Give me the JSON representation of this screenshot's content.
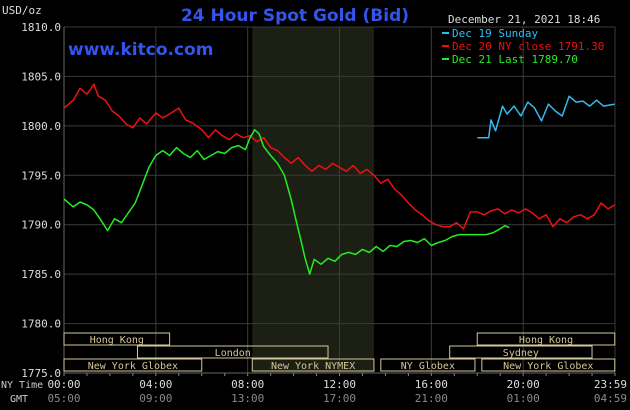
{
  "chart_data": {
    "type": "line",
    "title": "24 Hour Spot Gold (Bid)",
    "ylabel": "USD/oz",
    "watermark": "www.kitco.com",
    "timestamp": "December 21, 2021 18:46",
    "ylim": [
      1775.0,
      1810.0
    ],
    "y_ticks": [
      "1810.0",
      "1805.0",
      "1800.0",
      "1795.0",
      "1790.0",
      "1785.0",
      "1780.0",
      "1775.0"
    ],
    "x_ticks_ny": [
      "00:00",
      "04:00",
      "08:00",
      "12:00",
      "16:00",
      "20:00",
      "23:59"
    ],
    "x_ticks_gmt": [
      "05:00",
      "09:00",
      "13:00",
      "17:00",
      "21:00",
      "01:00",
      "04:59"
    ],
    "x_axis_ny_label": "NY Time",
    "x_axis_gmt_label": "GMT",
    "grid": true,
    "legend_position": "top-right",
    "series": [
      {
        "name": "Dec 19 Sunday",
        "color": "#33bbee",
        "points": [
          [
            18.0,
            1798.8
          ],
          [
            18.5,
            1798.8
          ],
          [
            18.6,
            1800.6
          ],
          [
            18.8,
            1799.5
          ],
          [
            19.1,
            1802.0
          ],
          [
            19.3,
            1801.2
          ],
          [
            19.6,
            1802.0
          ],
          [
            19.9,
            1801.0
          ],
          [
            20.2,
            1802.4
          ],
          [
            20.5,
            1801.8
          ],
          [
            20.8,
            1800.5
          ],
          [
            21.1,
            1802.2
          ],
          [
            21.4,
            1801.5
          ],
          [
            21.7,
            1801.0
          ],
          [
            22.0,
            1803.0
          ],
          [
            22.3,
            1802.4
          ],
          [
            22.6,
            1802.5
          ],
          [
            22.9,
            1802.0
          ],
          [
            23.2,
            1802.6
          ],
          [
            23.5,
            1802.0
          ],
          [
            23.99,
            1802.2
          ]
        ]
      },
      {
        "name": "Dec 20 NY close 1791.30",
        "color": "#ee1111",
        "points": [
          [
            0.0,
            1801.8
          ],
          [
            0.4,
            1802.6
          ],
          [
            0.7,
            1803.8
          ],
          [
            1.0,
            1803.2
          ],
          [
            1.3,
            1804.2
          ],
          [
            1.5,
            1803.0
          ],
          [
            1.8,
            1802.6
          ],
          [
            2.1,
            1801.5
          ],
          [
            2.4,
            1801.0
          ],
          [
            2.7,
            1800.2
          ],
          [
            3.0,
            1799.8
          ],
          [
            3.3,
            1800.8
          ],
          [
            3.6,
            1800.2
          ],
          [
            4.0,
            1801.3
          ],
          [
            4.3,
            1800.8
          ],
          [
            4.6,
            1801.2
          ],
          [
            5.0,
            1801.8
          ],
          [
            5.3,
            1800.6
          ],
          [
            5.6,
            1800.3
          ],
          [
            6.0,
            1799.6
          ],
          [
            6.3,
            1798.8
          ],
          [
            6.6,
            1799.6
          ],
          [
            6.9,
            1799.0
          ],
          [
            7.2,
            1798.6
          ],
          [
            7.5,
            1799.2
          ],
          [
            7.8,
            1798.8
          ],
          [
            8.1,
            1799.0
          ],
          [
            8.4,
            1798.4
          ],
          [
            8.7,
            1798.8
          ],
          [
            9.0,
            1797.8
          ],
          [
            9.3,
            1797.5
          ],
          [
            9.6,
            1796.8
          ],
          [
            9.9,
            1796.2
          ],
          [
            10.2,
            1796.8
          ],
          [
            10.5,
            1796.0
          ],
          [
            10.8,
            1795.4
          ],
          [
            11.1,
            1796.0
          ],
          [
            11.4,
            1795.6
          ],
          [
            11.7,
            1796.2
          ],
          [
            12.0,
            1795.8
          ],
          [
            12.3,
            1795.4
          ],
          [
            12.6,
            1796.0
          ],
          [
            12.9,
            1795.2
          ],
          [
            13.2,
            1795.6
          ],
          [
            13.5,
            1795.0
          ],
          [
            13.8,
            1794.2
          ],
          [
            14.1,
            1794.6
          ],
          [
            14.4,
            1793.6
          ],
          [
            14.7,
            1793.0
          ],
          [
            15.0,
            1792.2
          ],
          [
            15.3,
            1791.5
          ],
          [
            15.6,
            1791.0
          ],
          [
            15.9,
            1790.4
          ],
          [
            16.2,
            1790.0
          ],
          [
            16.5,
            1789.8
          ],
          [
            16.8,
            1789.8
          ],
          [
            17.1,
            1790.2
          ],
          [
            17.4,
            1789.6
          ],
          [
            17.7,
            1791.3
          ],
          [
            18.0,
            1791.3
          ],
          [
            18.3,
            1791.0
          ],
          [
            18.6,
            1791.4
          ],
          [
            18.9,
            1791.6
          ],
          [
            19.2,
            1791.1
          ],
          [
            19.5,
            1791.5
          ],
          [
            19.8,
            1791.2
          ],
          [
            20.1,
            1791.6
          ],
          [
            20.4,
            1791.2
          ],
          [
            20.7,
            1790.6
          ],
          [
            21.0,
            1791.0
          ],
          [
            21.3,
            1789.8
          ],
          [
            21.6,
            1790.6
          ],
          [
            21.9,
            1790.2
          ],
          [
            22.2,
            1790.8
          ],
          [
            22.5,
            1791.0
          ],
          [
            22.8,
            1790.6
          ],
          [
            23.1,
            1791.0
          ],
          [
            23.4,
            1792.2
          ],
          [
            23.7,
            1791.6
          ],
          [
            23.99,
            1792.0
          ]
        ]
      },
      {
        "name": "Dec 21 Last 1789.70",
        "color": "#22ee22",
        "points": [
          [
            0.0,
            1792.6
          ],
          [
            0.4,
            1791.8
          ],
          [
            0.7,
            1792.3
          ],
          [
            1.0,
            1792.0
          ],
          [
            1.3,
            1791.5
          ],
          [
            1.6,
            1790.5
          ],
          [
            1.9,
            1789.4
          ],
          [
            2.2,
            1790.6
          ],
          [
            2.5,
            1790.2
          ],
          [
            2.8,
            1791.2
          ],
          [
            3.1,
            1792.2
          ],
          [
            3.4,
            1794.0
          ],
          [
            3.7,
            1795.8
          ],
          [
            4.0,
            1797.0
          ],
          [
            4.3,
            1797.5
          ],
          [
            4.6,
            1797.0
          ],
          [
            4.9,
            1797.8
          ],
          [
            5.2,
            1797.2
          ],
          [
            5.5,
            1796.8
          ],
          [
            5.8,
            1797.5
          ],
          [
            6.1,
            1796.6
          ],
          [
            6.4,
            1797.0
          ],
          [
            6.7,
            1797.4
          ],
          [
            7.0,
            1797.2
          ],
          [
            7.3,
            1797.8
          ],
          [
            7.6,
            1798.0
          ],
          [
            7.9,
            1797.6
          ],
          [
            8.1,
            1798.8
          ],
          [
            8.3,
            1799.6
          ],
          [
            8.5,
            1799.2
          ],
          [
            8.7,
            1797.9
          ],
          [
            9.0,
            1797.0
          ],
          [
            9.3,
            1796.2
          ],
          [
            9.6,
            1795.0
          ],
          [
            9.9,
            1792.5
          ],
          [
            10.1,
            1790.5
          ],
          [
            10.3,
            1788.6
          ],
          [
            10.5,
            1786.6
          ],
          [
            10.7,
            1785.0
          ],
          [
            10.9,
            1786.5
          ],
          [
            11.2,
            1786.0
          ],
          [
            11.5,
            1786.6
          ],
          [
            11.8,
            1786.3
          ],
          [
            12.1,
            1787.0
          ],
          [
            12.4,
            1787.2
          ],
          [
            12.7,
            1787.0
          ],
          [
            13.0,
            1787.5
          ],
          [
            13.3,
            1787.2
          ],
          [
            13.6,
            1787.8
          ],
          [
            13.9,
            1787.3
          ],
          [
            14.2,
            1787.9
          ],
          [
            14.5,
            1787.8
          ],
          [
            14.8,
            1788.3
          ],
          [
            15.1,
            1788.4
          ],
          [
            15.4,
            1788.2
          ],
          [
            15.7,
            1788.6
          ],
          [
            16.0,
            1787.9
          ],
          [
            16.3,
            1788.2
          ],
          [
            16.6,
            1788.4
          ],
          [
            16.9,
            1788.8
          ],
          [
            17.2,
            1789.0
          ],
          [
            17.5,
            1789.0
          ],
          [
            17.8,
            1789.0
          ],
          [
            18.1,
            1789.0
          ],
          [
            18.4,
            1789.0
          ],
          [
            18.7,
            1789.2
          ],
          [
            19.0,
            1789.6
          ],
          [
            19.2,
            1789.9
          ],
          [
            19.4,
            1789.7
          ]
        ]
      }
    ],
    "sessions": [
      {
        "label": "Hong Kong",
        "start": 0.0,
        "end": 4.6,
        "row": 0
      },
      {
        "label": "Hong Kong",
        "start": 18.0,
        "end": 23.99,
        "row": 0
      },
      {
        "label": "London",
        "start": 3.2,
        "end": 11.5,
        "row": 1
      },
      {
        "label": "Sydney",
        "start": 16.8,
        "end": 23.0,
        "row": 1
      },
      {
        "label": "New York Globex",
        "start": 0.0,
        "end": 6.0,
        "row": 2
      },
      {
        "label": "New York NYMEX",
        "start": 8.2,
        "end": 13.5,
        "row": 2
      },
      {
        "label": "NY Globex",
        "start": 13.8,
        "end": 17.9,
        "row": 2
      },
      {
        "label": "New York Globex",
        "start": 18.2,
        "end": 23.99,
        "row": 2
      }
    ],
    "highlight_band": [
      8.2,
      13.5
    ]
  }
}
